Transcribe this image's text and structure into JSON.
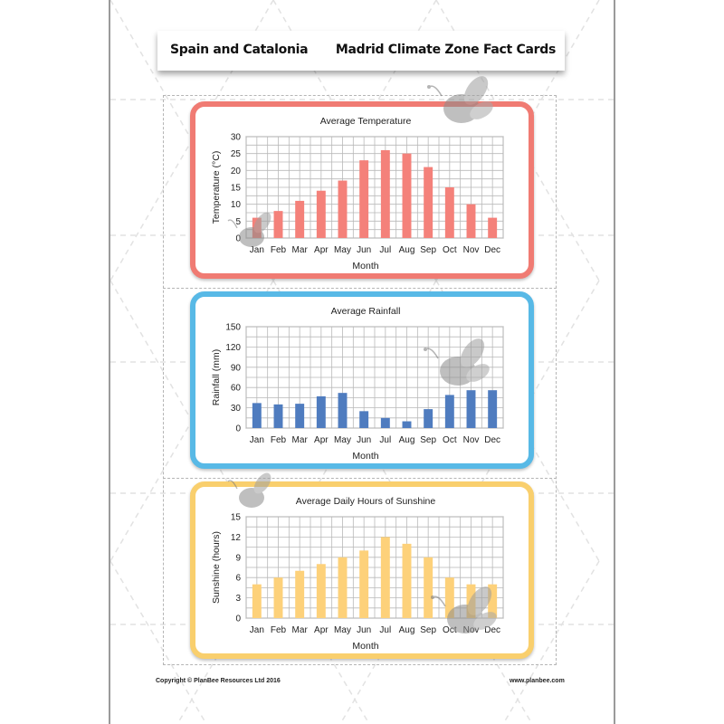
{
  "header": {
    "left_title": "Spain and Catalonia",
    "right_title": "Madrid Climate Zone Fact Cards"
  },
  "footer": {
    "copyright": "Copyright © PlanBee Resources Ltd 2016",
    "website": "www.planbee.com"
  },
  "colors": {
    "temperature_border": "#f07b73",
    "temperature_bar": "#f4817a",
    "rainfall_border": "#58b9e6",
    "rainfall_bar": "#4f7cbf",
    "sunshine_border": "#f9cf6d",
    "sunshine_bar": "#fdd17a",
    "grid": "#b9b9b9"
  },
  "chart_data": [
    {
      "type": "bar",
      "title": "Average Temperature",
      "xlabel": "Month",
      "ylabel": "Temperature (°C)",
      "categories": [
        "Jan",
        "Feb",
        "Mar",
        "Apr",
        "May",
        "Jun",
        "Jul",
        "Aug",
        "Sep",
        "Oct",
        "Nov",
        "Dec"
      ],
      "values": [
        6,
        8,
        11,
        14,
        17,
        23,
        26,
        25,
        21,
        15,
        10,
        6
      ],
      "ylim": [
        0,
        30
      ],
      "yticks": [
        0,
        5,
        10,
        15,
        20,
        25,
        30
      ],
      "grid": true
    },
    {
      "type": "bar",
      "title": "Average Rainfall",
      "xlabel": "Month",
      "ylabel": "Rainfall (mm)",
      "categories": [
        "Jan",
        "Feb",
        "Mar",
        "Apr",
        "May",
        "Jun",
        "Jul",
        "Aug",
        "Sep",
        "Oct",
        "Nov",
        "Dec"
      ],
      "values": [
        37,
        35,
        36,
        47,
        52,
        25,
        15,
        10,
        28,
        49,
        56,
        56
      ],
      "ylim": [
        0,
        150
      ],
      "yticks": [
        0,
        30,
        60,
        90,
        120,
        150
      ],
      "grid": true
    },
    {
      "type": "bar",
      "title": "Average Daily Hours of Sunshine",
      "xlabel": "Month",
      "ylabel": "Sunshine (hours)",
      "categories": [
        "Jan",
        "Feb",
        "Mar",
        "Apr",
        "May",
        "Jun",
        "Jul",
        "Aug",
        "Sep",
        "Oct",
        "Nov",
        "Dec"
      ],
      "values": [
        5,
        6,
        7,
        8,
        9,
        10,
        12,
        11,
        9,
        6,
        5,
        5
      ],
      "ylim": [
        0,
        15
      ],
      "yticks": [
        0,
        3,
        6,
        9,
        12,
        15
      ],
      "grid": true
    }
  ]
}
